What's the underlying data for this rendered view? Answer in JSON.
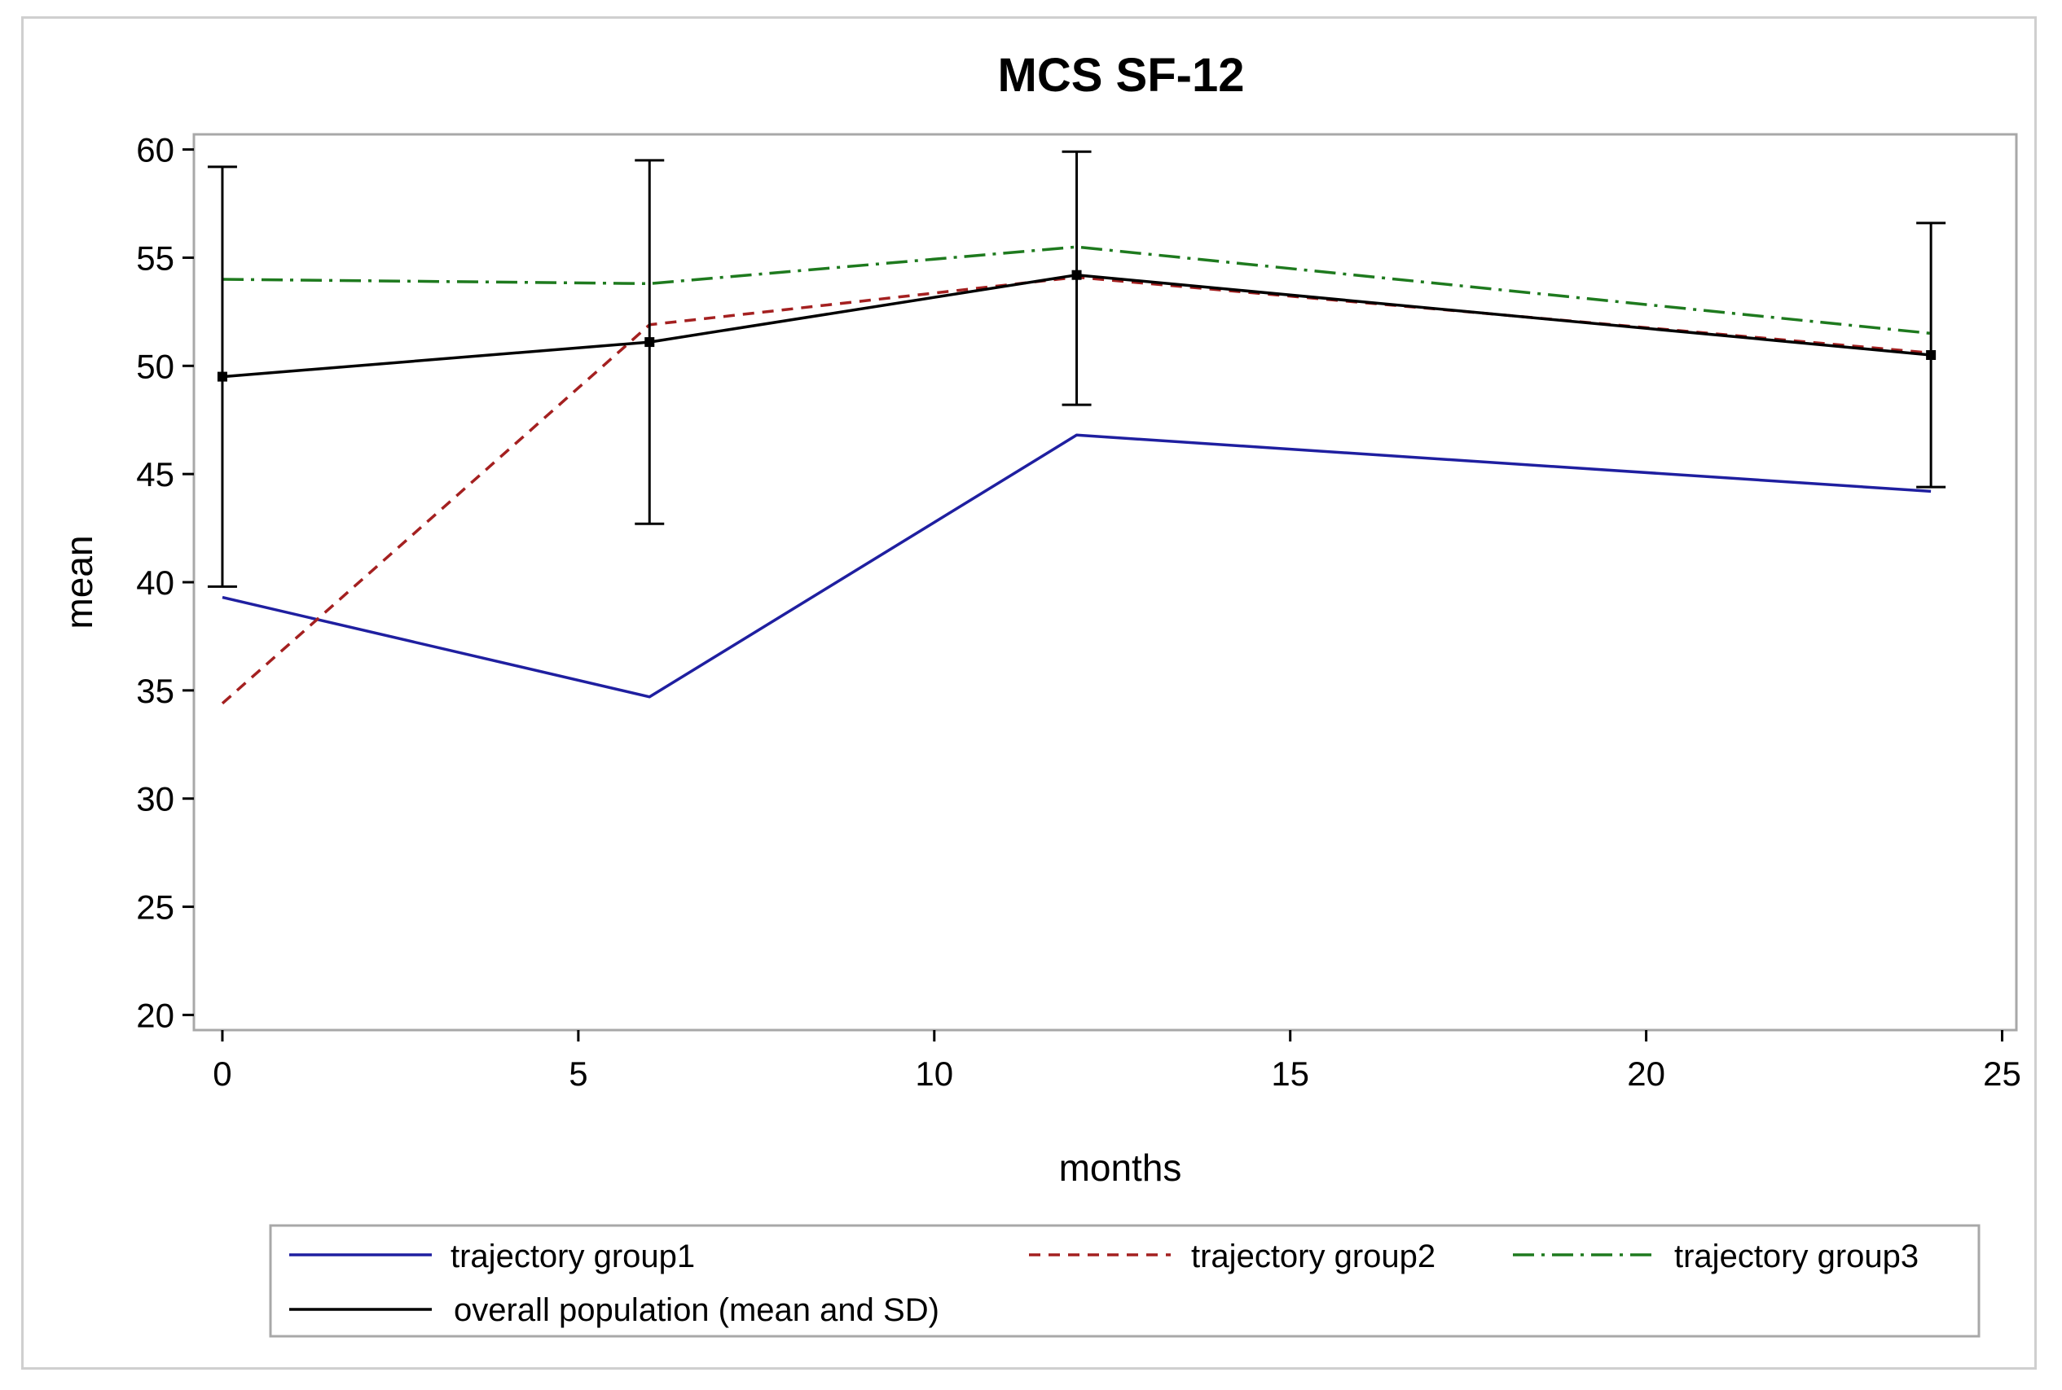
{
  "chart_data": {
    "type": "line",
    "title": "MCS SF-12",
    "xlabel": "months",
    "ylabel": "mean",
    "xlim": [
      -0.4,
      25.2
    ],
    "ylim": [
      19.3,
      60.7
    ],
    "xticks": [
      0,
      5,
      10,
      15,
      20,
      25
    ],
    "yticks": [
      20,
      25,
      30,
      35,
      40,
      45,
      50,
      55,
      60
    ],
    "x_tick_labels": [
      "0",
      "5",
      "10",
      "15",
      "20",
      "25"
    ],
    "y_tick_labels": [
      "20",
      "25",
      "30",
      "35",
      "40",
      "45",
      "50",
      "55",
      "60"
    ],
    "grid": false,
    "legend_position": "bottom",
    "series": [
      {
        "name": "trajectory group1",
        "color": "#1f1fa0",
        "dash": "solid",
        "x": [
          0,
          6,
          12,
          24
        ],
        "values": [
          39.3,
          34.7,
          46.8,
          44.2
        ]
      },
      {
        "name": "trajectory group2",
        "color": "#a42020",
        "dash": "dashed",
        "x": [
          0,
          6,
          12,
          24
        ],
        "values": [
          34.4,
          51.9,
          54.1,
          50.6
        ]
      },
      {
        "name": "trajectory group3",
        "color": "#1e7a1e",
        "dash": "dashdot",
        "x": [
          0,
          6,
          12,
          24
        ],
        "values": [
          54.0,
          53.8,
          55.5,
          51.5
        ]
      },
      {
        "name": "overall population (mean and SD)",
        "color": "#000000",
        "dash": "solid",
        "x": [
          0,
          6,
          12,
          24
        ],
        "values": [
          49.5,
          51.1,
          54.2,
          50.5
        ],
        "error_low": [
          39.8,
          42.7,
          48.2,
          44.4
        ],
        "error_high": [
          59.2,
          59.5,
          59.9,
          56.6
        ]
      }
    ]
  }
}
